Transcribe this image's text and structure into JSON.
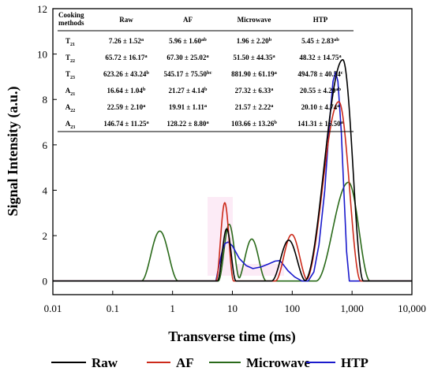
{
  "chart_data": {
    "type": "line",
    "xlabel": "Transverse time (ms)",
    "ylabel": "Signal Intensity (a.u.)",
    "xscale": "log",
    "xlim": [
      0.01,
      10000
    ],
    "ylim": [
      -0.6,
      12
    ],
    "x_ticks": [
      {
        "v": 0.01,
        "label": "0.01"
      },
      {
        "v": 0.1,
        "label": "0.1"
      },
      {
        "v": 1,
        "label": "1"
      },
      {
        "v": 10,
        "label": "10"
      },
      {
        "v": 100,
        "label": "100"
      },
      {
        "v": 1000,
        "label": "1,000"
      },
      {
        "v": 10000,
        "label": "10,000"
      }
    ],
    "y_ticks": [
      {
        "v": 0,
        "label": "0"
      },
      {
        "v": 2,
        "label": "2"
      },
      {
        "v": 4,
        "label": "4"
      },
      {
        "v": 6,
        "label": "6"
      },
      {
        "v": 8,
        "label": "8"
      },
      {
        "v": 10,
        "label": "10"
      },
      {
        "v": 12,
        "label": "12"
      }
    ],
    "legend_position": "bottom",
    "series": [
      {
        "name": "Raw",
        "color": "#000000",
        "peaks": [
          {
            "x0": 5.6,
            "x1": 11.5,
            "amp": 2.3
          },
          {
            "x0": 45,
            "x1": 170,
            "amp": 1.8
          },
          {
            "x0": 160,
            "x1": 1550,
            "amp": 9.75,
            "center": 700
          }
        ]
      },
      {
        "name": "AF",
        "color": "#cc2a1a",
        "peaks": [
          {
            "x0": 5.3,
            "x1": 10.5,
            "amp": 3.45
          },
          {
            "x0": 52,
            "x1": 185,
            "amp": 2.05
          },
          {
            "x0": 165,
            "x1": 1400,
            "amp": 7.9,
            "center": 600
          }
        ]
      },
      {
        "name": "Microwave",
        "color": "#2a6a1a",
        "peaks": [
          {
            "x0": 0.3,
            "x1": 1.25,
            "amp": 2.2
          },
          {
            "x0": 5.8,
            "x1": 13.5,
            "amp": 2.5
          },
          {
            "x0": 12,
            "x1": 37,
            "amp": 1.85
          },
          {
            "x0": 250,
            "x1": 2000,
            "amp": 4.35,
            "center": 870
          }
        ]
      },
      {
        "name": "HTP",
        "color": "#1a1acc",
        "points": [
          [
            5.3,
            0
          ],
          [
            6.0,
            0.7
          ],
          [
            6.8,
            1.35
          ],
          [
            7.5,
            1.65
          ],
          [
            8.5,
            1.72
          ],
          [
            10,
            1.55
          ],
          [
            13,
            1.0
          ],
          [
            17,
            0.68
          ],
          [
            22,
            0.55
          ],
          [
            30,
            0.62
          ],
          [
            40,
            0.75
          ],
          [
            52,
            0.88
          ],
          [
            62,
            0.9
          ],
          [
            72,
            0.7
          ],
          [
            85,
            0.45
          ],
          [
            110,
            0.18
          ],
          [
            145,
            0.0
          ],
          [
            185,
            0.0
          ],
          [
            230,
            0.4
          ],
          [
            280,
            1.6
          ],
          [
            350,
            4.0
          ],
          [
            420,
            7.0
          ],
          [
            480,
            8.8
          ],
          [
            530,
            9.2
          ],
          [
            580,
            8.8
          ],
          [
            660,
            6.6
          ],
          [
            740,
            3.6
          ],
          [
            810,
            1.3
          ],
          [
            900,
            0.0
          ]
        ]
      }
    ]
  },
  "table": {
    "headers": [
      "Cooking methods",
      "Raw",
      "AF",
      "Microwave",
      "HTP"
    ],
    "rows": [
      {
        "label": "T",
        "sub": "21",
        "cells": [
          {
            "v": "7.26 ± 1.52",
            "sup": "a"
          },
          {
            "v": "5.96 ± 1.60",
            "sup": "ab"
          },
          {
            "v": "1.96 ± 2.20",
            "sup": "b"
          },
          {
            "v": "5.45 ± 2.83",
            "sup": "ab"
          }
        ]
      },
      {
        "label": "T",
        "sub": "22",
        "cells": [
          {
            "v": "65.72 ± 16.17",
            "sup": "a"
          },
          {
            "v": "67.30 ± 25.02",
            "sup": "a"
          },
          {
            "v": "51.50 ± 44.35",
            "sup": "a"
          },
          {
            "v": "48.32 ± 14.75",
            "sup": "a"
          }
        ]
      },
      {
        "label": "T",
        "sub": "23",
        "cells": [
          {
            "v": "623.26 ± 43.24",
            "sup": "b"
          },
          {
            "v": "545.17 ± 75.50",
            "sup": "bc"
          },
          {
            "v": "881.90 ± 61.19",
            "sup": "a"
          },
          {
            "v": "494.78 ± 40.54",
            "sup": "c"
          }
        ]
      },
      {
        "label": "A",
        "sub": "21",
        "cells": [
          {
            "v": "16.64 ± 1.04",
            "sup": "b"
          },
          {
            "v": "21.27 ± 4.14",
            "sup": "b"
          },
          {
            "v": "27.32 ± 6.33",
            "sup": "a"
          },
          {
            "v": "20.55 ± 4.20",
            "sup": "ab"
          }
        ]
      },
      {
        "label": "A",
        "sub": "22",
        "cells": [
          {
            "v": "22.59 ± 2.10",
            "sup": "a"
          },
          {
            "v": "19.91 ± 1.11",
            "sup": "a"
          },
          {
            "v": "21.57 ± 2.22",
            "sup": "a"
          },
          {
            "v": "20.10 ± 4.74",
            "sup": "a"
          }
        ]
      },
      {
        "label": "A",
        "sub": "23",
        "cells": [
          {
            "v": "146.74 ± 11.25",
            "sup": "a"
          },
          {
            "v": "128.22 ± 8.80",
            "sup": "a"
          },
          {
            "v": "103.66 ± 13.26",
            "sup": "b"
          },
          {
            "v": "141.31 ± 16.50",
            "sup": "a"
          }
        ]
      }
    ]
  }
}
